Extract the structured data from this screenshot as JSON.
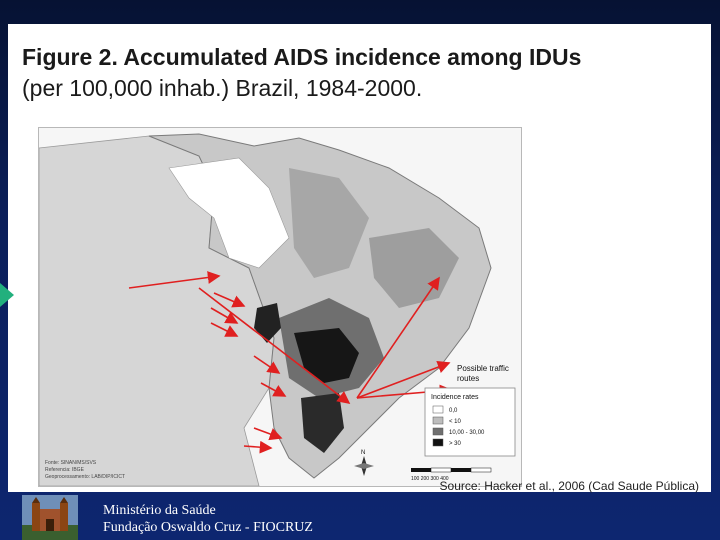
{
  "slide": {
    "title_bold": "Figure 2. Accumulated AIDS incidence among IDUs",
    "title_normal": "(per 100,000 inhab.) Brazil, 1984-2000.",
    "source": "Source: Hacker et al., 2006 (Cad Saude Pública)"
  },
  "map": {
    "traffic_label_line1": "Possible traffic",
    "traffic_label_line2": "routes",
    "legend_title": "Incidence rates",
    "legend_items": [
      "0,0",
      "< 10",
      "10,00 - 30,00",
      "> 30"
    ],
    "legend_colors": [
      "#ffffff",
      "#bdbdbd",
      "#6f6f6f",
      "#111111"
    ],
    "scale_label": "100  200  300  400",
    "compass_label": "N",
    "credits": [
      "Fonte: SINAN/MS/SVS",
      "Referencia: IBGE",
      "Geoprocessamento: LAB/DIP/ICICT"
    ],
    "arrow_color": "#e02020"
  },
  "footer": {
    "line1": "Ministério da Saúde",
    "line2": "Fundação Oswaldo Cruz - FIOCRUZ"
  }
}
